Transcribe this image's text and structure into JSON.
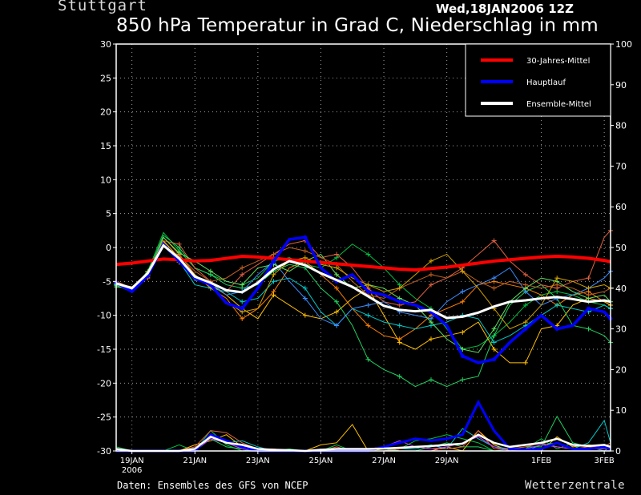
{
  "header": {
    "location": "Stuttgart",
    "datetime": "Wed,18JAN2006 12Z",
    "title": "850 hPa Temperatur in Grad C, Niederschlag in mm"
  },
  "footer": {
    "source": "Daten: Ensembles des GFS von NCEP",
    "brand": "Wetterzentrale"
  },
  "chart_data": {
    "type": "line",
    "x_unit": "days since 19JAN2006 00Z",
    "xlim": [
      0,
      15.2
    ],
    "x_ticks": [
      {
        "x": 0,
        "label": "19JAN",
        "label2": "2006"
      },
      {
        "x": 2,
        "label": "21JAN"
      },
      {
        "x": 4,
        "label": "23JAN"
      },
      {
        "x": 6,
        "label": "25JAN"
      },
      {
        "x": 8,
        "label": "27JAN"
      },
      {
        "x": 10,
        "label": "29JAN"
      },
      {
        "x": 13,
        "label": "1FEB"
      },
      {
        "x": 15,
        "label": "3FEB"
      }
    ],
    "y_left": {
      "min": -30,
      "max": 30,
      "ticks": [
        30,
        25,
        20,
        15,
        10,
        5,
        0,
        -5,
        -10,
        -15,
        -20,
        -25,
        -30
      ]
    },
    "y_right": {
      "min": 0,
      "max": 100,
      "ticks": [
        100,
        90,
        80,
        70,
        60,
        50,
        40,
        30,
        20,
        10,
        0
      ]
    },
    "grid": true,
    "legend": {
      "position": "top-right",
      "items": [
        {
          "label": "30-Jahres-Mittel",
          "color": "#ff0000"
        },
        {
          "label": "Hauptlauf",
          "color": "#0000ff"
        },
        {
          "label": "Ensemble-Mittel",
          "color": "#ffffff"
        }
      ]
    },
    "mean_30yr": {
      "color": "#ff0000",
      "x": [
        -0.5,
        0,
        0.5,
        1,
        1.5,
        2,
        2.5,
        3,
        3.5,
        4,
        4.5,
        5,
        5.5,
        6,
        6.5,
        7,
        7.5,
        8,
        8.5,
        9,
        9.5,
        10,
        10.5,
        11,
        11.5,
        12,
        12.5,
        13,
        13.5,
        14,
        14.5,
        15,
        15.2
      ],
      "y": [
        -2.5,
        -2.3,
        -2.0,
        -1.7,
        -1.8,
        -2.0,
        -1.9,
        -1.6,
        -1.3,
        -1.4,
        -1.6,
        -1.8,
        -2.0,
        -2.2,
        -2.4,
        -2.6,
        -2.8,
        -3.0,
        -3.2,
        -3.3,
        -3.1,
        -2.9,
        -2.6,
        -2.3,
        -2.0,
        -1.8,
        -1.6,
        -1.4,
        -1.3,
        -1.4,
        -1.6,
        -1.9,
        -2.1
      ]
    },
    "main_run": {
      "color": "#0000ff",
      "x": [
        -0.5,
        0,
        0.5,
        1,
        1.5,
        2,
        2.5,
        3,
        3.5,
        4,
        4.5,
        5,
        5.5,
        6,
        6.5,
        7,
        7.5,
        8,
        8.5,
        9,
        9.5,
        10,
        10.5,
        11,
        11.5,
        12,
        12.5,
        13,
        13.5,
        14,
        14.5,
        15,
        15.2
      ],
      "y": [
        -5.2,
        -6.5,
        -4.2,
        0.5,
        -2.0,
        -4.5,
        -5.5,
        -8.2,
        -9.0,
        -6.0,
        -2.0,
        1.2,
        1.5,
        -3.0,
        -5.0,
        -4.0,
        -6.5,
        -7.0,
        -8.0,
        -8.5,
        -9.5,
        -11.5,
        -16.0,
        -17.0,
        -16.5,
        -14.0,
        -12.0,
        -10.0,
        -12.0,
        -11.5,
        -9.0,
        -9.5,
        -10.5
      ]
    },
    "ensemble_mean": {
      "color": "#ffffff",
      "x": [
        -0.5,
        0,
        0.5,
        1,
        1.5,
        2,
        2.5,
        3,
        3.5,
        4,
        4.5,
        5,
        5.5,
        6,
        6.5,
        7,
        7.5,
        8,
        8.5,
        9,
        9.5,
        10,
        10.5,
        11,
        11.5,
        12,
        12.5,
        13,
        13.5,
        14,
        14.5,
        15,
        15.2
      ],
      "y": [
        -5.3,
        -6.0,
        -3.8,
        0.3,
        -1.6,
        -4.3,
        -5.2,
        -6.3,
        -6.6,
        -5.2,
        -3.2,
        -2.0,
        -2.6,
        -3.8,
        -4.8,
        -5.8,
        -7.2,
        -8.6,
        -9.2,
        -9.4,
        -9.2,
        -10.4,
        -10.2,
        -9.6,
        -8.7,
        -8.0,
        -7.8,
        -7.5,
        -7.3,
        -7.6,
        -8.0,
        -7.8,
        -8.0
      ]
    },
    "members": [
      {
        "color": "#00c040",
        "y": [
          -5.6,
          -6.2,
          -3.5,
          2.2,
          -0.5,
          -3.0,
          -4.0,
          -5.0,
          -5.5,
          -4.5,
          -2.0,
          -1.5,
          -2.5,
          -3.0,
          -1.5,
          0.5,
          -1.0,
          -3.0,
          -5.5,
          -7.5,
          -9.0,
          -12.0,
          -15.0,
          -14.5,
          -13.0,
          -11.0,
          -8.5,
          -7.0,
          -6.5,
          -7.0,
          -8.0,
          -8.5,
          -9.0
        ]
      },
      {
        "color": "#ff7f00",
        "y": [
          -5.0,
          -6.0,
          -4.5,
          1.5,
          -1.0,
          -4.0,
          -6.0,
          -7.5,
          -10.5,
          -9.0,
          -6.5,
          -3.0,
          -2.0,
          -4.0,
          -6.0,
          -9.0,
          -11.5,
          -13.0,
          -13.5,
          -12.0,
          -10.0,
          -9.0,
          -8.0,
          -5.5,
          -5.0,
          -5.5,
          -6.0,
          -7.0,
          -8.5,
          -7.0,
          -6.5,
          -8.0,
          -8.5
        ]
      },
      {
        "color": "#ffc000",
        "y": [
          -5.3,
          -5.8,
          -4.0,
          1.0,
          -1.5,
          -4.5,
          -5.5,
          -7.0,
          -9.0,
          -10.5,
          -7.0,
          -8.5,
          -10.0,
          -10.5,
          -9.5,
          -7.5,
          -6.0,
          -10.0,
          -14.0,
          -15.0,
          -13.5,
          -13.0,
          -12.5,
          -11.0,
          -15.0,
          -17.0,
          -17.0,
          -12.0,
          -11.5,
          -8.5,
          -7.5,
          -8.0,
          -8.5
        ]
      },
      {
        "color": "#00c8c8",
        "y": [
          -5.2,
          -6.3,
          -4.2,
          0.8,
          -2.0,
          -5.5,
          -6.0,
          -6.5,
          -8.0,
          -7.5,
          -5.0,
          -4.5,
          -6.0,
          -9.5,
          -11.5,
          -9.0,
          -10.0,
          -11.0,
          -11.5,
          -12.0,
          -11.5,
          -11.0,
          -10.0,
          -10.5,
          -14.0,
          -13.0,
          -11.5,
          -10.0,
          -8.5,
          -9.0,
          -9.5,
          -8.5,
          -9.0
        ]
      },
      {
        "color": "#20d060",
        "y": [
          -5.5,
          -6.6,
          -3.8,
          1.8,
          0.0,
          -3.0,
          -4.0,
          -5.5,
          -6.0,
          -5.5,
          -3.5,
          -2.5,
          -3.0,
          -6.0,
          -8.0,
          -11.5,
          -16.5,
          -18.0,
          -19.0,
          -20.5,
          -19.5,
          -20.5,
          -19.5,
          -19.0,
          -13.0,
          -8.5,
          -6.5,
          -5.5,
          -7.5,
          -11.5,
          -12.0,
          -13.0,
          -14.0
        ]
      },
      {
        "color": "#e06040",
        "y": [
          -5.0,
          -6.0,
          -4.0,
          1.0,
          0.5,
          -3.0,
          -5.0,
          -6.5,
          -4.0,
          -2.5,
          -1.0,
          0.5,
          1.0,
          -1.5,
          -1.0,
          -3.0,
          -6.0,
          -8.0,
          -8.5,
          -8.0,
          -5.5,
          -4.5,
          -3.0,
          -1.0,
          1.0,
          -2.0,
          -4.0,
          -5.5,
          -6.0,
          -5.0,
          -4.5,
          1.5,
          2.5
        ]
      },
      {
        "color": "#3a8cff",
        "y": [
          -5.4,
          -6.2,
          -3.9,
          0.6,
          -1.8,
          -4.8,
          -5.2,
          -7.0,
          -6.5,
          -4.0,
          -2.0,
          -5.0,
          -7.5,
          -10.5,
          -11.5,
          -9.0,
          -8.5,
          -8.0,
          -9.5,
          -10.0,
          -10.5,
          -8.0,
          -6.5,
          -5.5,
          -4.5,
          -3.0,
          -6.5,
          -8.5,
          -7.5,
          -7.0,
          -6.0,
          -4.5,
          -3.5
        ]
      },
      {
        "color": "#60e060",
        "y": [
          -5.8,
          -6.0,
          -4.2,
          1.5,
          -0.8,
          -2.0,
          -3.5,
          -5.0,
          -5.5,
          -3.0,
          -2.5,
          -3.5,
          -2.0,
          -1.0,
          -4.0,
          -6.0,
          -5.5,
          -6.0,
          -7.5,
          -8.5,
          -11.0,
          -13.5,
          -15.0,
          -15.5,
          -12.0,
          -8.0,
          -6.0,
          -4.5,
          -5.0,
          -6.5,
          -7.5,
          -7.0,
          -8.0
        ]
      },
      {
        "color": "#c06020",
        "y": [
          -5.1,
          -6.4,
          -4.4,
          0.2,
          -1.2,
          -3.5,
          -5.0,
          -4.5,
          -3.0,
          -2.0,
          -1.0,
          0.0,
          -0.5,
          -1.5,
          -2.5,
          -5.0,
          -7.0,
          -7.5,
          -6.0,
          -5.0,
          -4.0,
          -4.5,
          -3.5,
          -5.0,
          -6.0,
          -5.0,
          -5.5,
          -6.0,
          -5.5,
          -6.0,
          -7.0,
          -6.5,
          -6.0
        ]
      },
      {
        "color": "#d0a000",
        "y": [
          -5.3,
          -6.1,
          -3.6,
          0.9,
          -2.2,
          -4.0,
          -5.8,
          -8.0,
          -9.5,
          -9.0,
          -4.0,
          -2.0,
          -1.5,
          -2.5,
          -3.0,
          -4.5,
          -5.5,
          -6.5,
          -6.0,
          -4.0,
          -2.0,
          -1.0,
          -3.5,
          -6.0,
          -9.0,
          -12.0,
          -11.0,
          -8.5,
          -4.5,
          -5.0,
          -6.0,
          -5.5,
          -6.0
        ]
      }
    ],
    "precip_mean": {
      "color": "#ffffff",
      "y": [
        0.5,
        0.0,
        0.0,
        0.0,
        0.0,
        0.5,
        3.5,
        2.0,
        1.5,
        0.5,
        0.3,
        0.2,
        0.0,
        0.3,
        0.5,
        0.5,
        0.5,
        0.6,
        0.8,
        1.0,
        1.2,
        1.5,
        1.8,
        4.0,
        2.0,
        1.0,
        1.5,
        2.0,
        3.0,
        1.5,
        1.2,
        1.5,
        1.0
      ]
    },
    "precip_main": {
      "color": "#0000ff",
      "y": [
        0.0,
        0.0,
        0.0,
        0.0,
        0.0,
        0.0,
        4.0,
        2.5,
        1.0,
        0.0,
        0.0,
        0.0,
        0.0,
        0.0,
        0.0,
        0.0,
        0.0,
        1.0,
        2.0,
        3.0,
        2.5,
        3.0,
        4.0,
        12.0,
        5.0,
        0.5,
        0.3,
        0.5,
        2.0,
        0.5,
        0.5,
        1.0,
        0.5
      ]
    },
    "precip_members": [
      {
        "color": "#00c040",
        "y": [
          1.0,
          0.0,
          0.0,
          0.0,
          1.5,
          0.0,
          5.0,
          1.5,
          0.0,
          0.5,
          0.0,
          0.5,
          0.0,
          0.0,
          1.5,
          0.0,
          0.0,
          0.5,
          0.5,
          2.5,
          3.0,
          4.0,
          3.0,
          2.0,
          0.0,
          0.0,
          0.5,
          3.0,
          0.5,
          2.0,
          1.0,
          0.0,
          1.0
        ]
      },
      {
        "color": "#ffc000",
        "y": [
          0.0,
          0.0,
          0.0,
          0.0,
          0.0,
          1.5,
          2.5,
          4.0,
          1.0,
          0.0,
          0.5,
          0.0,
          0.0,
          1.5,
          2.0,
          6.5,
          0.0,
          0.5,
          0.0,
          0.0,
          0.0,
          1.0,
          0.0,
          5.0,
          1.5,
          0.0,
          0.0,
          0.0,
          3.5,
          1.0,
          1.5,
          1.0,
          0.5
        ]
      },
      {
        "color": "#00c8c8",
        "y": [
          0.5,
          0.0,
          0.0,
          0.0,
          0.0,
          0.5,
          4.0,
          2.0,
          2.5,
          1.0,
          0.0,
          0.0,
          0.0,
          0.0,
          0.0,
          0.0,
          0.0,
          0.0,
          0.5,
          0.5,
          1.5,
          0.5,
          5.5,
          3.0,
          1.0,
          0.5,
          0.0,
          1.5,
          2.0,
          0.5,
          2.0,
          7.5,
          2.0
        ]
      },
      {
        "color": "#20d060",
        "y": [
          0.0,
          0.0,
          0.0,
          0.0,
          0.0,
          0.0,
          3.0,
          1.0,
          0.5,
          0.0,
          0.0,
          0.0,
          0.0,
          0.0,
          0.0,
          0.0,
          0.5,
          0.5,
          0.0,
          0.0,
          1.0,
          2.0,
          1.0,
          1.0,
          0.0,
          0.5,
          1.0,
          1.0,
          8.5,
          2.0,
          1.0,
          0.5,
          0.5
        ]
      },
      {
        "color": "#e06040",
        "y": [
          0.0,
          0.0,
          0.0,
          0.0,
          0.0,
          1.0,
          5.0,
          4.5,
          2.0,
          0.5,
          0.5,
          0.0,
          0.0,
          0.0,
          1.0,
          0.0,
          0.0,
          0.0,
          0.5,
          1.0,
          0.5,
          0.5,
          1.0,
          5.0,
          0.5,
          0.5,
          1.0,
          2.0,
          1.0,
          0.5,
          1.0,
          1.0,
          2.0
        ]
      },
      {
        "color": "#c040ff",
        "y": [
          0.0,
          0.0,
          0.0,
          0.0,
          0.0,
          0.0,
          3.0,
          2.0,
          0.5,
          0.0,
          0.0,
          0.0,
          0.0,
          0.0,
          0.0,
          0.0,
          0.5,
          1.0,
          2.5,
          1.0,
          0.5,
          1.0,
          2.0,
          3.5,
          1.0,
          0.0,
          0.5,
          1.5,
          1.0,
          0.5,
          0.5,
          0.5,
          0.5
        ]
      }
    ]
  }
}
